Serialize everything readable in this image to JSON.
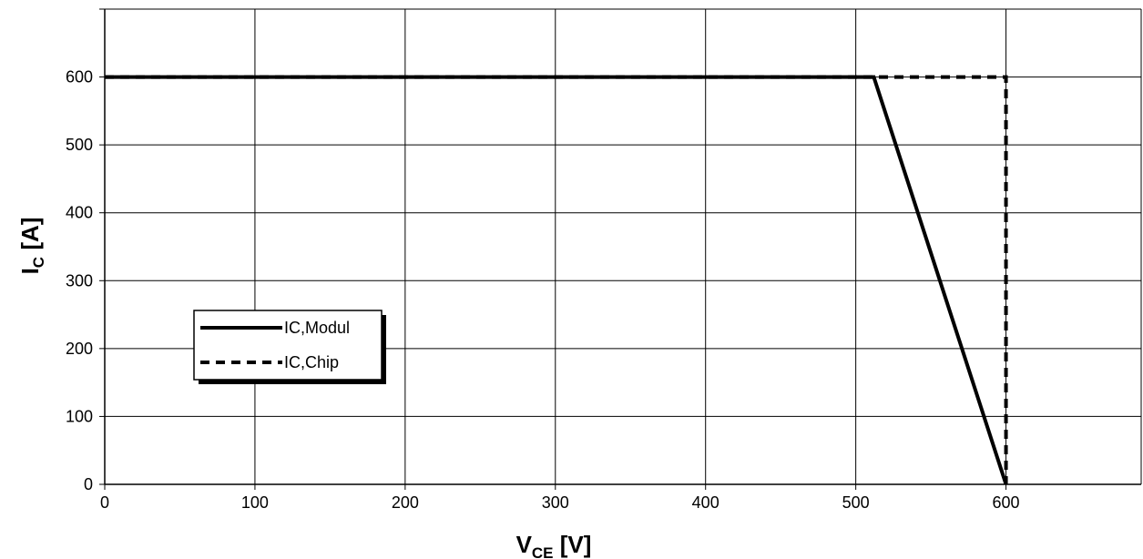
{
  "chart_data": {
    "type": "line",
    "xlabel_main": "V",
    "xlabel_sub": "CE",
    "xlabel_unit": " [V]",
    "ylabel_main": "I",
    "ylabel_sub": "C",
    "ylabel_unit": " [A]",
    "xlim": [
      0,
      690
    ],
    "ylim": [
      0,
      700
    ],
    "x_ticks": [
      0,
      100,
      200,
      300,
      400,
      500,
      600
    ],
    "y_ticks": [
      0,
      100,
      200,
      300,
      400,
      500,
      600
    ],
    "grid": true,
    "legend_position": "left-middle",
    "series": [
      {
        "name": "IC,Modul",
        "style": "solid",
        "color": "#000000",
        "x": [
          0,
          512,
          600
        ],
        "y": [
          600,
          600,
          0
        ]
      },
      {
        "name": "IC,Chip",
        "style": "dashed",
        "color": "#000000",
        "x": [
          0,
          600,
          600
        ],
        "y": [
          600,
          600,
          0
        ]
      }
    ]
  }
}
